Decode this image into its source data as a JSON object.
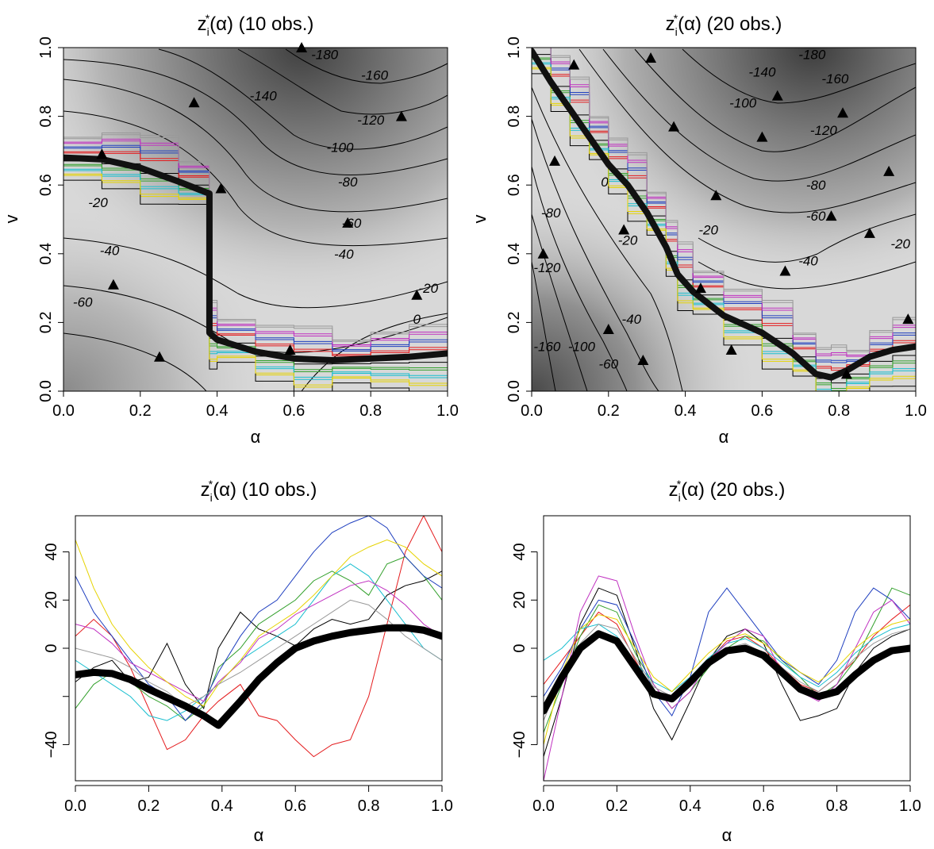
{
  "chart_data": [
    {
      "type": "heatmap",
      "title": "z_i*(α) (10 obs.)",
      "title_parts": {
        "base": "z",
        "sub": "i",
        "sup": "*",
        "rest": "(α)  (10  obs.)"
      },
      "xlabel": "α",
      "ylabel": "v",
      "xlim": [
        0,
        1
      ],
      "ylim": [
        0,
        1
      ],
      "xticks": [
        "0.0",
        "0.2",
        "0.4",
        "0.6",
        "0.8",
        "1.0"
      ],
      "yticks": [
        "0.0",
        "0.2",
        "0.4",
        "0.6",
        "0.8",
        "1.0"
      ],
      "grid": false,
      "contour_labels": [
        {
          "text": "-180",
          "x": 0.68,
          "y": 0.98
        },
        {
          "text": "-160",
          "x": 0.81,
          "y": 0.92
        },
        {
          "text": "-140",
          "x": 0.52,
          "y": 0.86
        },
        {
          "text": "-120",
          "x": 0.8,
          "y": 0.79
        },
        {
          "text": "-100",
          "x": 0.72,
          "y": 0.71
        },
        {
          "text": "-80",
          "x": 0.74,
          "y": 0.61
        },
        {
          "text": "-60",
          "x": 0.75,
          "y": 0.49
        },
        {
          "text": "-40",
          "x": 0.73,
          "y": 0.4
        },
        {
          "text": "-20",
          "x": 0.95,
          "y": 0.3
        },
        {
          "text": "0",
          "x": 0.92,
          "y": 0.21
        },
        {
          "text": "-20",
          "x": 0.09,
          "y": 0.55
        },
        {
          "text": "-40",
          "x": 0.12,
          "y": 0.41
        },
        {
          "text": "-60",
          "x": 0.05,
          "y": 0.26
        }
      ],
      "observations": [
        {
          "x": 0.62,
          "y": 1.0
        },
        {
          "x": 0.34,
          "y": 0.84
        },
        {
          "x": 0.88,
          "y": 0.8
        },
        {
          "x": 0.1,
          "y": 0.69
        },
        {
          "x": 0.74,
          "y": 0.49
        },
        {
          "x": 0.13,
          "y": 0.31
        },
        {
          "x": 0.92,
          "y": 0.28
        },
        {
          "x": 0.25,
          "y": 0.1
        },
        {
          "x": 0.59,
          "y": 0.12
        },
        {
          "x": 0.41,
          "y": 0.59
        }
      ],
      "estimate_path": [
        [
          0.0,
          0.68
        ],
        [
          0.1,
          0.675
        ],
        [
          0.2,
          0.65
        ],
        [
          0.3,
          0.61
        ],
        [
          0.38,
          0.575
        ],
        [
          0.38,
          0.17
        ],
        [
          0.4,
          0.15
        ],
        [
          0.5,
          0.115
        ],
        [
          0.6,
          0.095
        ],
        [
          0.7,
          0.09
        ],
        [
          0.8,
          0.095
        ],
        [
          0.9,
          0.1
        ],
        [
          1.0,
          0.11
        ]
      ]
    },
    {
      "type": "heatmap",
      "title": "z_i*(α) (20 obs.)",
      "title_parts": {
        "base": "z",
        "sub": "i",
        "sup": "*",
        "rest": "(α)  (20  obs.)"
      },
      "xlabel": "α",
      "ylabel": "v",
      "xlim": [
        0,
        1
      ],
      "ylim": [
        0,
        1
      ],
      "xticks": [
        "0.0",
        "0.2",
        "0.4",
        "0.6",
        "0.8",
        "1.0"
      ],
      "yticks": [
        "0.0",
        "0.2",
        "0.4",
        "0.6",
        "0.8",
        "1.0"
      ],
      "grid": false,
      "contour_labels": [
        {
          "text": "-180",
          "x": 0.73,
          "y": 0.98
        },
        {
          "text": "-140",
          "x": 0.6,
          "y": 0.93
        },
        {
          "text": "-160",
          "x": 0.79,
          "y": 0.91
        },
        {
          "text": "-100",
          "x": 0.55,
          "y": 0.84
        },
        {
          "text": "-120",
          "x": 0.76,
          "y": 0.76
        },
        {
          "text": "-80",
          "x": 0.74,
          "y": 0.6
        },
        {
          "text": "-60",
          "x": 0.74,
          "y": 0.51
        },
        {
          "text": "-20",
          "x": 0.46,
          "y": 0.47
        },
        {
          "text": "-20",
          "x": 0.96,
          "y": 0.43
        },
        {
          "text": "-40",
          "x": 0.72,
          "y": 0.38
        },
        {
          "text": "-20",
          "x": 0.25,
          "y": 0.44
        },
        {
          "text": "0",
          "x": 0.19,
          "y": 0.61
        },
        {
          "text": "-80",
          "x": 0.05,
          "y": 0.52
        },
        {
          "text": "-120",
          "x": 0.04,
          "y": 0.36
        },
        {
          "text": "-40",
          "x": 0.26,
          "y": 0.21
        },
        {
          "text": "-100",
          "x": 0.13,
          "y": 0.13
        },
        {
          "text": "-60",
          "x": 0.2,
          "y": 0.08
        },
        {
          "text": "-160",
          "x": 0.04,
          "y": 0.13
        }
      ],
      "observations": [
        {
          "x": 0.31,
          "y": 0.97
        },
        {
          "x": 0.11,
          "y": 0.95
        },
        {
          "x": 0.64,
          "y": 0.86
        },
        {
          "x": 0.81,
          "y": 0.81
        },
        {
          "x": 0.37,
          "y": 0.77
        },
        {
          "x": 0.6,
          "y": 0.74
        },
        {
          "x": 0.06,
          "y": 0.67
        },
        {
          "x": 0.93,
          "y": 0.64
        },
        {
          "x": 0.48,
          "y": 0.57
        },
        {
          "x": 0.78,
          "y": 0.51
        },
        {
          "x": 0.24,
          "y": 0.47
        },
        {
          "x": 0.88,
          "y": 0.46
        },
        {
          "x": 0.03,
          "y": 0.4
        },
        {
          "x": 0.66,
          "y": 0.35
        },
        {
          "x": 0.44,
          "y": 0.3
        },
        {
          "x": 0.98,
          "y": 0.21
        },
        {
          "x": 0.2,
          "y": 0.18
        },
        {
          "x": 0.52,
          "y": 0.12
        },
        {
          "x": 0.29,
          "y": 0.09
        },
        {
          "x": 0.82,
          "y": 0.05
        }
      ],
      "estimate_path": [
        [
          0.0,
          0.99
        ],
        [
          0.05,
          0.9
        ],
        [
          0.1,
          0.82
        ],
        [
          0.15,
          0.74
        ],
        [
          0.2,
          0.66
        ],
        [
          0.25,
          0.6
        ],
        [
          0.3,
          0.52
        ],
        [
          0.35,
          0.42
        ],
        [
          0.38,
          0.34
        ],
        [
          0.42,
          0.29
        ],
        [
          0.5,
          0.22
        ],
        [
          0.6,
          0.17
        ],
        [
          0.68,
          0.11
        ],
        [
          0.74,
          0.05
        ],
        [
          0.78,
          0.04
        ],
        [
          0.82,
          0.06
        ],
        [
          0.88,
          0.1
        ],
        [
          0.94,
          0.12
        ],
        [
          1.0,
          0.13
        ]
      ]
    },
    {
      "type": "line",
      "title": "z_i*(α) (10 obs.)",
      "title_parts": {
        "base": "z",
        "sub": "i",
        "sup": "*",
        "rest": "(α)  (10  obs.)"
      },
      "xlabel": "α",
      "ylabel": "",
      "xlim": [
        0,
        1
      ],
      "ylim": [
        -55,
        55
      ],
      "xticks": [
        "0.0",
        "0.2",
        "0.4",
        "0.6",
        "0.8",
        "1.0"
      ],
      "yticks": [
        {
          "value": -40,
          "label": "−40"
        },
        {
          "value": -20,
          "label": ""
        },
        {
          "value": 0,
          "label": "0"
        },
        {
          "value": 20,
          "label": "20"
        },
        {
          "value": 40,
          "label": "40"
        }
      ],
      "grid": false,
      "thick_series": {
        "x": [
          0.0,
          0.05,
          0.1,
          0.15,
          0.2,
          0.25,
          0.3,
          0.35,
          0.39,
          0.45,
          0.5,
          0.55,
          0.6,
          0.65,
          0.7,
          0.75,
          0.8,
          0.85,
          0.9,
          0.95,
          1.0
        ],
        "y": [
          -11,
          -10,
          -10.5,
          -13,
          -17,
          -20.5,
          -24,
          -28,
          -32,
          -22,
          -13,
          -6,
          0,
          3,
          5,
          6.5,
          7.5,
          8.5,
          8.5,
          7.5,
          5
        ]
      },
      "thin_series_colors": [
        "#000000",
        "#e41a1c",
        "#33a02c",
        "#1f3fbf",
        "#17becf",
        "#c030c0",
        "#e6d300",
        "#999999"
      ],
      "thin_series": [
        {
          "y": [
            -14,
            -8,
            -5,
            -14,
            -12,
            2,
            -15,
            -25,
            0,
            15,
            8,
            5,
            1,
            8,
            12,
            10,
            12,
            22,
            26,
            28,
            32
          ]
        },
        {
          "y": [
            5,
            12,
            5,
            -8,
            -25,
            -42,
            -38,
            -28,
            -22,
            -15,
            -28,
            -30,
            -38,
            -45,
            -40,
            -38,
            -20,
            10,
            40,
            55,
            40
          ]
        },
        {
          "y": [
            -25,
            -15,
            -10,
            -14,
            -20,
            -24,
            -30,
            -24,
            -8,
            0,
            10,
            15,
            20,
            28,
            32,
            28,
            22,
            35,
            38,
            30,
            20
          ]
        },
        {
          "y": [
            30,
            15,
            5,
            -5,
            -15,
            -20,
            -30,
            -22,
            -10,
            5,
            15,
            20,
            30,
            40,
            48,
            52,
            55,
            50,
            38,
            30,
            25
          ]
        },
        {
          "y": [
            -5,
            -10,
            -15,
            -20,
            -28,
            -30,
            -26,
            -20,
            -15,
            -5,
            0,
            5,
            10,
            20,
            30,
            35,
            30,
            20,
            10,
            0,
            -5
          ]
        },
        {
          "y": [
            10,
            8,
            2,
            -6,
            -10,
            -14,
            -18,
            -22,
            -14,
            -6,
            4,
            8,
            14,
            18,
            22,
            26,
            28,
            24,
            18,
            10,
            5
          ]
        },
        {
          "y": [
            45,
            25,
            10,
            0,
            -8,
            -14,
            -20,
            -24,
            -15,
            -5,
            5,
            10,
            15,
            22,
            30,
            38,
            42,
            45,
            42,
            35,
            30
          ]
        },
        {
          "y": [
            0,
            -2,
            -4,
            -8,
            -14,
            -18,
            -24,
            -20,
            -15,
            -10,
            -5,
            0,
            5,
            10,
            15,
            20,
            18,
            12,
            5,
            0,
            -5
          ]
        }
      ]
    },
    {
      "type": "line",
      "title": "z_i*(α) (20 obs.)",
      "title_parts": {
        "base": "z",
        "sub": "i",
        "sup": "*",
        "rest": "(α)  (20  obs.)"
      },
      "xlabel": "α",
      "ylabel": "",
      "xlim": [
        0,
        1
      ],
      "ylim": [
        -55,
        55
      ],
      "xticks": [
        "0.0",
        "0.2",
        "0.4",
        "0.6",
        "0.8",
        "1.0"
      ],
      "yticks": [
        {
          "value": -40,
          "label": "−40"
        },
        {
          "value": -20,
          "label": ""
        },
        {
          "value": 0,
          "label": "0"
        },
        {
          "value": 20,
          "label": "20"
        },
        {
          "value": 40,
          "label": "40"
        }
      ],
      "grid": false,
      "thick_series": {
        "x": [
          0.0,
          0.05,
          0.1,
          0.15,
          0.2,
          0.25,
          0.3,
          0.35,
          0.4,
          0.45,
          0.5,
          0.55,
          0.6,
          0.65,
          0.7,
          0.75,
          0.8,
          0.85,
          0.9,
          0.95,
          1.0
        ],
        "y": [
          -26,
          -12,
          0,
          6,
          3,
          -8,
          -19,
          -21,
          -14,
          -6,
          -1,
          0,
          -3,
          -10,
          -17,
          -20,
          -18,
          -11,
          -5,
          -1,
          0
        ]
      },
      "thin_series_colors": [
        "#000000",
        "#e41a1c",
        "#33a02c",
        "#1f3fbf",
        "#17becf",
        "#c030c0",
        "#e6d300",
        "#999999"
      ],
      "thin_series": [
        {
          "y": [
            -45,
            -20,
            10,
            25,
            22,
            0,
            -25,
            -38,
            -22,
            -5,
            5,
            8,
            2,
            -15,
            -30,
            -28,
            -25,
            -10,
            0,
            5,
            8
          ]
        },
        {
          "y": [
            -15,
            -5,
            5,
            15,
            10,
            -5,
            -18,
            -22,
            -15,
            -5,
            3,
            5,
            0,
            -8,
            -15,
            -18,
            -12,
            -5,
            5,
            12,
            18
          ]
        },
        {
          "y": [
            -35,
            -15,
            5,
            18,
            15,
            -2,
            -15,
            -25,
            -18,
            -8,
            0,
            5,
            3,
            -5,
            -12,
            -20,
            -15,
            -5,
            10,
            25,
            22
          ]
        },
        {
          "y": [
            -20,
            -8,
            8,
            20,
            18,
            2,
            -18,
            -28,
            -12,
            15,
            25,
            15,
            5,
            -5,
            -10,
            -15,
            -5,
            15,
            25,
            20,
            12
          ]
        },
        {
          "y": [
            -5,
            0,
            8,
            10,
            5,
            -6,
            -14,
            -18,
            -12,
            -4,
            2,
            4,
            0,
            -6,
            -12,
            -16,
            -10,
            -2,
            4,
            8,
            10
          ]
        },
        {
          "y": [
            -55,
            -20,
            15,
            30,
            28,
            5,
            -15,
            -25,
            -18,
            -5,
            2,
            8,
            5,
            -10,
            -18,
            -22,
            -15,
            0,
            15,
            20,
            10
          ]
        },
        {
          "y": [
            -40,
            -10,
            8,
            14,
            12,
            0,
            -12,
            -18,
            -10,
            -2,
            4,
            6,
            2,
            -4,
            -10,
            -14,
            -8,
            0,
            6,
            10,
            12
          ]
        },
        {
          "y": [
            -30,
            -12,
            2,
            10,
            8,
            -4,
            -16,
            -20,
            -14,
            -6,
            0,
            2,
            -2,
            -8,
            -14,
            -18,
            -12,
            -4,
            2,
            6,
            8
          ]
        }
      ]
    }
  ]
}
